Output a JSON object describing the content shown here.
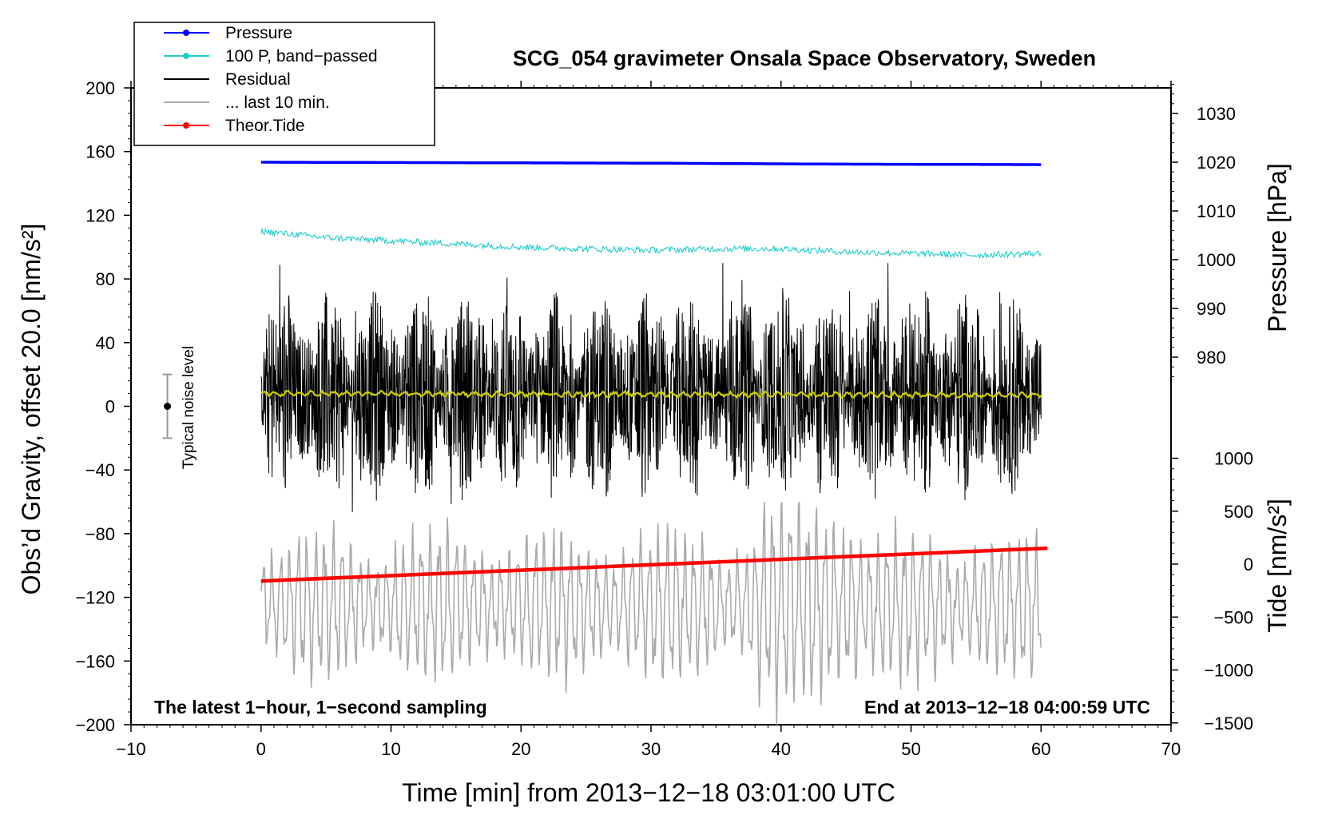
{
  "chart_data": {
    "type": "line",
    "title": "SCG_054 gravimeter Onsala Space Observatory, Sweden",
    "xlabel": "Time [min] from 2013−12−18 03:01:00 UTC",
    "ylabel_left": "Obs’d Gravity, offset 20.0 [nm/s²]",
    "ylabel_right_top": "Pressure [hPa]",
    "ylabel_right_bottom": "Tide [nm/s²]",
    "xlim": [
      -10,
      70
    ],
    "ylim_left": [
      -200,
      200
    ],
    "x_ticks": [
      -10,
      0,
      10,
      20,
      30,
      40,
      50,
      60,
      70
    ],
    "x_tick_labels": [
      "−10",
      "0",
      "10",
      "20",
      "30",
      "40",
      "50",
      "60",
      "70"
    ],
    "y_ticks_left": [
      200,
      160,
      120,
      80,
      40,
      0,
      -40,
      -80,
      -120,
      -160,
      -200
    ],
    "y_tick_labels_left": [
      "200",
      "160",
      "120",
      "80",
      "40",
      "0",
      "−40",
      "−80",
      "−120",
      "−160",
      "−200"
    ],
    "pressure_ticks": [
      1030,
      1020,
      1010,
      1000,
      990,
      980
    ],
    "pressure_tick_labels": [
      "1030",
      "1020",
      "1010",
      "1000",
      "990",
      "980"
    ],
    "tide_ticks": [
      1000,
      500,
      0,
      -500,
      -1000,
      -1500
    ],
    "tide_tick_labels": [
      "1000",
      "500",
      "0",
      "−500",
      "−1000",
      "−1500"
    ],
    "legend": [
      {
        "label": "Pressure",
        "color": "#0000ff",
        "marker": true
      },
      {
        "label": "100 P, band−passed",
        "color": "#22cccc",
        "marker": true
      },
      {
        "label": "Residual",
        "color": "#000000",
        "marker": false
      },
      {
        "label": "... last 10 min.",
        "color": "#aaaaaa",
        "marker": false
      },
      {
        "label": "Theor.Tide",
        "color": "#ff0000",
        "marker": true
      }
    ],
    "annotations": {
      "noise_label": "Typical noise level",
      "noise_bar": {
        "x": -7.2,
        "center": 0,
        "low": -20,
        "high": 20
      },
      "bottom_left": "The latest 1−hour, 1−second sampling",
      "bottom_right": "End at 2013−12−18 04:00:59 UTC"
    },
    "series": [
      {
        "name": "Pressure",
        "color": "#0000ff",
        "axis": "pressure_hPa",
        "x": [
          0,
          15,
          30,
          45,
          60
        ],
        "values": [
          1020.0,
          1019.9,
          1019.8,
          1019.6,
          1019.5
        ]
      },
      {
        "name": "100 P, band-passed",
        "color": "#22cccc",
        "axis": "gravity_nm_s2",
        "x": [
          0,
          5,
          10,
          15,
          20,
          25,
          30,
          35,
          40,
          45,
          50,
          55,
          60
        ],
        "values": [
          110,
          106,
          104,
          102,
          100,
          99,
          98,
          99,
          99,
          97,
          96,
          95,
          96
        ]
      },
      {
        "name": "Residual",
        "color": "#000000",
        "axis": "gravity_nm_s2",
        "x": [
          0,
          60
        ],
        "values": [
          7,
          7
        ],
        "amplitude_range": [
          -75,
          90
        ]
      },
      {
        "name": "Residual smoothed",
        "color": "#cccc00",
        "axis": "gravity_nm_s2",
        "x": [
          0,
          60
        ],
        "values": [
          8,
          7
        ]
      },
      {
        "name": "... last 10 min.",
        "color": "#aaaaaa",
        "axis": "gravity_nm_s2",
        "x": [
          0,
          60
        ],
        "values": [
          -125,
          -125
        ],
        "amplitude_range": [
          -200,
          -60
        ]
      },
      {
        "name": "Theor.Tide",
        "color": "#ff0000",
        "axis": "tide_nm_s2",
        "x": [
          0,
          60.5
        ],
        "values": [
          -160,
          150
        ]
      }
    ]
  }
}
